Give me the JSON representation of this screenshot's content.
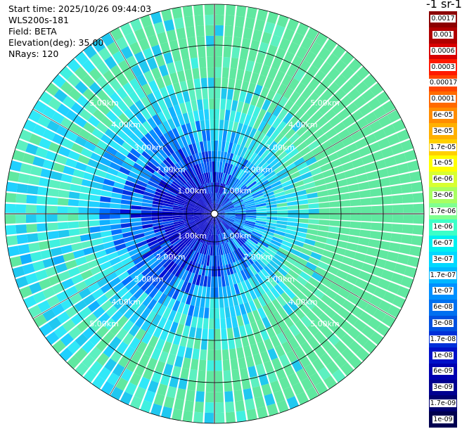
{
  "header": {
    "start_time": "Start time: 2025/10/26 09:44:03",
    "instrument": "WLS200s-181",
    "field": "Field: BETA",
    "elevation": "Elevation(deg): 35.00",
    "nrays": "NRays: 120"
  },
  "colorbar": {
    "title": "-1 sr-1",
    "levels": [
      "0.0017",
      "0.001",
      "0.0006",
      "0.0003",
      "0.00017",
      "0.0001",
      "6e-05",
      "3e-05",
      "1.7e-05",
      "1e-05",
      "6e-06",
      "3e-06",
      "1.7e-06",
      "1e-06",
      "6e-07",
      "3e-07",
      "1.7e-07",
      "1e-07",
      "6e-08",
      "3e-08",
      "1.7e-08",
      "1e-08",
      "6e-09",
      "3e-09",
      "1.7e-09",
      "1e-09"
    ],
    "colors": [
      "#8b0000",
      "#b00000",
      "#d80000",
      "#ff1a00",
      "#ff4500",
      "#ff6a00",
      "#ff8c00",
      "#ffb000",
      "#ffd000",
      "#ffff00",
      "#d8ff30",
      "#a8ff60",
      "#80ff90",
      "#3cffc8",
      "#00f0f0",
      "#00d8ff",
      "#00b8ff",
      "#0090ff",
      "#0070f0",
      "#0050e0",
      "#0030d8",
      "#0010c8",
      "#0000b0",
      "#000090",
      "#000070",
      "#000050"
    ]
  },
  "ring_labels": [
    "1.00km",
    "2.00km",
    "3.00km",
    "4.00km",
    "5.00km"
  ],
  "plot": {
    "nrays": 120,
    "gate_colors": [
      "#0000c8",
      "#0010d8",
      "#0030e0",
      "#0050f0",
      "#0070ff",
      "#0a90ff",
      "#10b0ff",
      "#20d0ff",
      "#30e8f8",
      "#40f0e0",
      "#20c8f0",
      "#5cf0c0",
      "#60e8a0"
    ]
  }
}
